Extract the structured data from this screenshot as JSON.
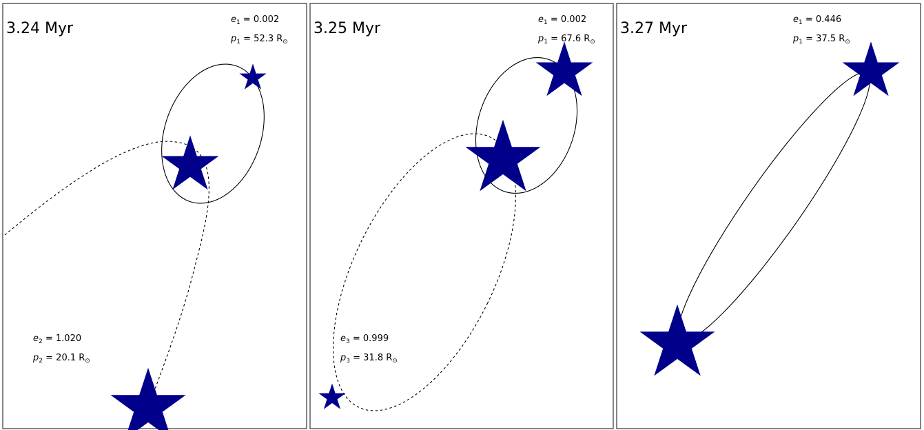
{
  "panels": [
    {
      "time": "3.24 Myr",
      "labels": [
        {
          "sym": "e",
          "sub": "1",
          "value": "0.002"
        },
        {
          "sym": "p",
          "sub": "1",
          "value": "52.3 R",
          "unit_sub": "⊙"
        },
        {
          "sym": "e",
          "sub": "2",
          "value": "1.020"
        },
        {
          "sym": "p",
          "sub": "2",
          "value": "20.1 R",
          "unit_sub": "⊙"
        }
      ]
    },
    {
      "time": "3.25 Myr",
      "labels": [
        {
          "sym": "e",
          "sub": "1",
          "value": "0.002"
        },
        {
          "sym": "p",
          "sub": "1",
          "value": "67.6 R",
          "unit_sub": "⊙"
        },
        {
          "sym": "e",
          "sub": "3",
          "value": "0.999"
        },
        {
          "sym": "p",
          "sub": "3",
          "value": "31.8 R",
          "unit_sub": "⊙"
        }
      ]
    },
    {
      "time": "3.27 Myr",
      "labels": [
        {
          "sym": "e",
          "sub": "1",
          "value": "0.446"
        },
        {
          "sym": "p",
          "sub": "1",
          "value": "37.5 R",
          "unit_sub": "⊙"
        }
      ]
    }
  ],
  "colors": {
    "star_fill": "#0000ff",
    "star_edge": "#00008b",
    "orbit": "#000000",
    "frame": "#333333"
  },
  "icons": [
    "star-icon"
  ]
}
